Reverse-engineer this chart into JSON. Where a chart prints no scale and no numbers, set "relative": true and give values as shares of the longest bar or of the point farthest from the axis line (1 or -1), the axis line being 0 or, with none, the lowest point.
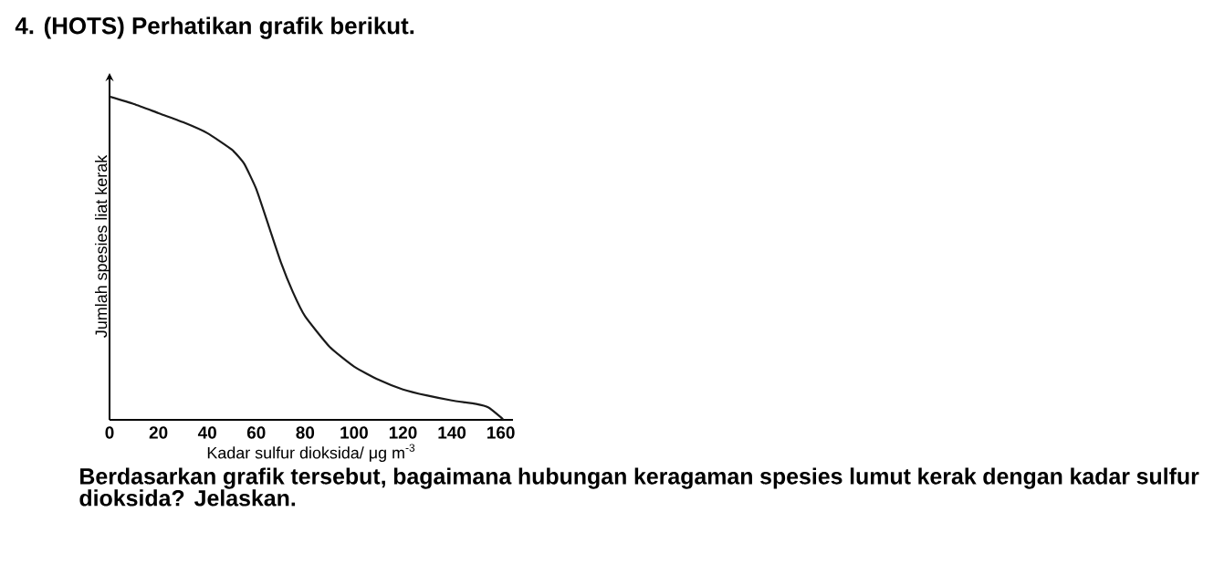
{
  "chart_data": {
    "type": "line",
    "title": "4. (HOTS) Perhatikan grafik berikut.",
    "xlabel": "Kadar sulfur dioksida/ μg m$^{-3}$",
    "ylabel": "Jumlah spesies liat kerak",
    "annotations": [
      "Berdasarkan grafik tersebut, bagaimana hubungan keragaman spesies lumut kerak dengan kadar sulfur dioksida? Jelaskan."
    ],
    "relative": true,
    "xlim": [
      0,
      165
    ],
    "xticks": [
      0,
      20,
      40,
      60,
      80,
      100,
      120,
      140,
      160
    ],
    "x": [
      0,
      10,
      20,
      30,
      40,
      50,
      55,
      60,
      65,
      70,
      75,
      80,
      90,
      100,
      110,
      120,
      130,
      140,
      150,
      155,
      160,
      161
    ],
    "series": [
      {
        "color": "#1a1a1a",
        "values": [
          1.0,
          0.977,
          0.949,
          0.921,
          0.887,
          0.836,
          0.793,
          0.714,
          0.602,
          0.489,
          0.395,
          0.32,
          0.226,
          0.165,
          0.124,
          0.094,
          0.075,
          0.06,
          0.049,
          0.038,
          0.008,
          0.0
        ]
      }
    ]
  }
}
